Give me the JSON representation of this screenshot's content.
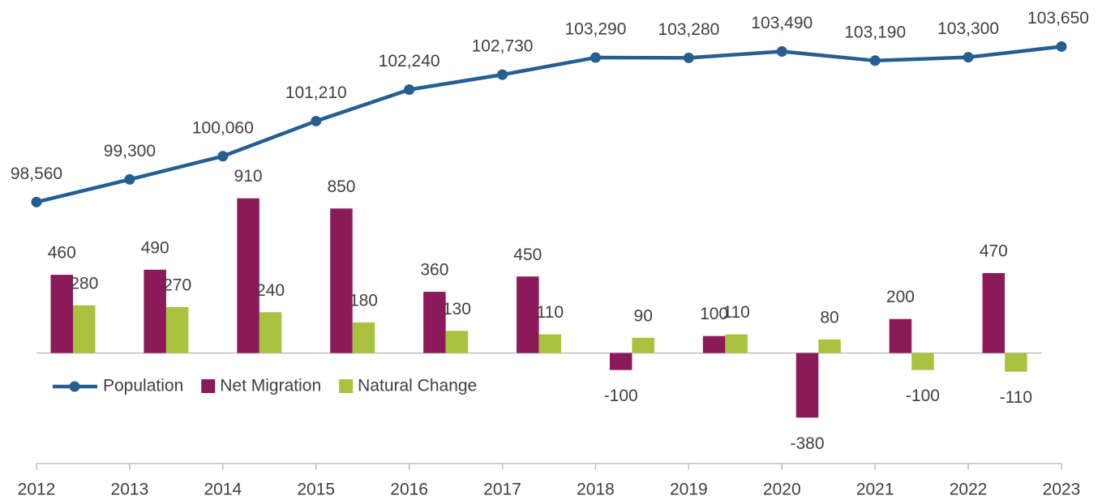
{
  "chart_data": {
    "type": "bar_line",
    "categories": [
      "2012",
      "2013",
      "2014",
      "2015",
      "2016",
      "2017",
      "2018",
      "2019",
      "2020",
      "2021",
      "2022",
      "2023"
    ],
    "series": [
      {
        "name": "Population",
        "type": "line",
        "axis": "y2",
        "color": "#255e91",
        "values": [
          98560,
          99300,
          100060,
          101210,
          102240,
          102730,
          103290,
          103280,
          103490,
          103190,
          103300,
          103650
        ],
        "value_labels": [
          "98,560",
          "99,300",
          "100,060",
          "101,210",
          "102,240",
          "102,730",
          "103,290",
          "103,280",
          "103,490",
          "103,190",
          "103,300",
          "103,650"
        ]
      },
      {
        "name": "Net Migration",
        "type": "bar",
        "color": "#8b1a5a",
        "values": [
          460,
          490,
          910,
          850,
          360,
          450,
          -100,
          100,
          -380,
          200,
          470,
          null
        ]
      },
      {
        "name": "Natural Change",
        "type": "bar",
        "color": "#a9c23f",
        "values": [
          280,
          270,
          240,
          180,
          130,
          110,
          90,
          110,
          80,
          -100,
          -110,
          null
        ]
      }
    ],
    "ylim": [
      -650,
      2000
    ],
    "y2lim": [
      90000,
      104750
    ],
    "legend": "inside-left"
  }
}
